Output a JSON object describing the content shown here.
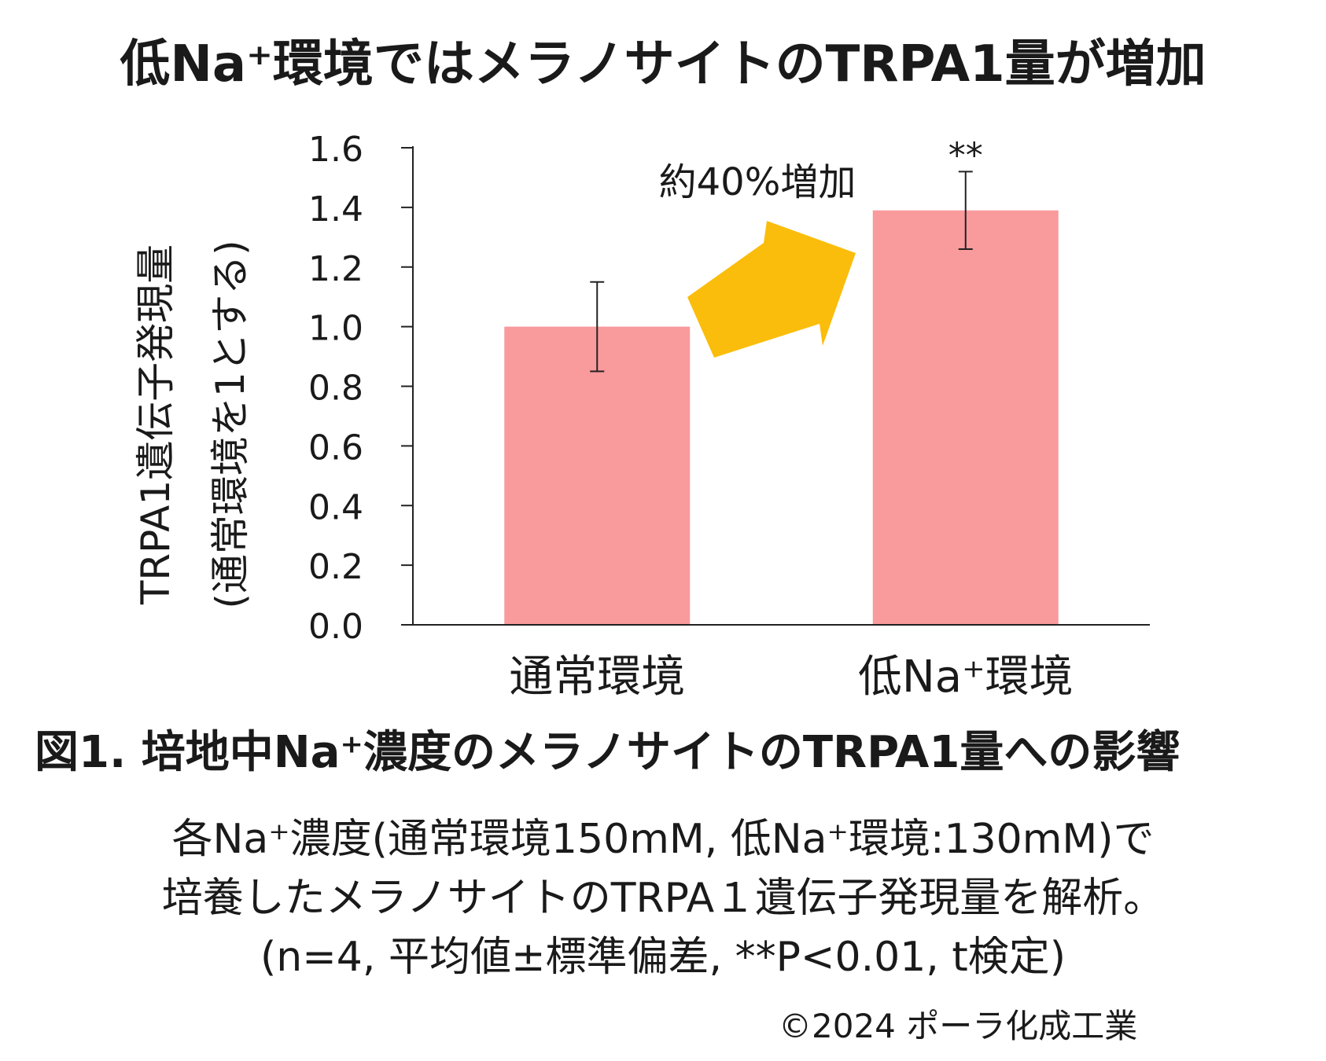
{
  "header": {
    "title": "低Na⁺環境ではメラノサイトのTRPA1量が増加"
  },
  "chart_data": {
    "type": "bar",
    "categories": [
      "通常環境",
      "低Na⁺環境"
    ],
    "values": [
      1.0,
      1.39
    ],
    "error": [
      0.15,
      0.13
    ],
    "significance": [
      "",
      "**"
    ],
    "ylabel_line1": "TRPA1遺伝子発現量",
    "ylabel_line2": "(通常環境を1とする)",
    "ylim": [
      0,
      1.6
    ],
    "yticks": [
      "0.0",
      "0.2",
      "0.4",
      "0.6",
      "0.8",
      "1.0",
      "1.2",
      "1.4",
      "1.6"
    ],
    "annotation": "約40%増加",
    "bar_color": "#f99a9c",
    "arrow_color": "#fbbd0b"
  },
  "caption": {
    "figure_title": "図1. 培地中Na⁺濃度のメラノサイトのTRPA1量への影響",
    "line1": "各Na⁺濃度(通常環境150mM, 低Na⁺環境:130mM)で",
    "line2": "培養したメラノサイトのTRPA１遺伝子発現量を解析。",
    "line3": "(n=4, 平均値±標準偏差, **P<0.01, t検定)"
  },
  "copyright": "©2024 ポーラ化成工業"
}
